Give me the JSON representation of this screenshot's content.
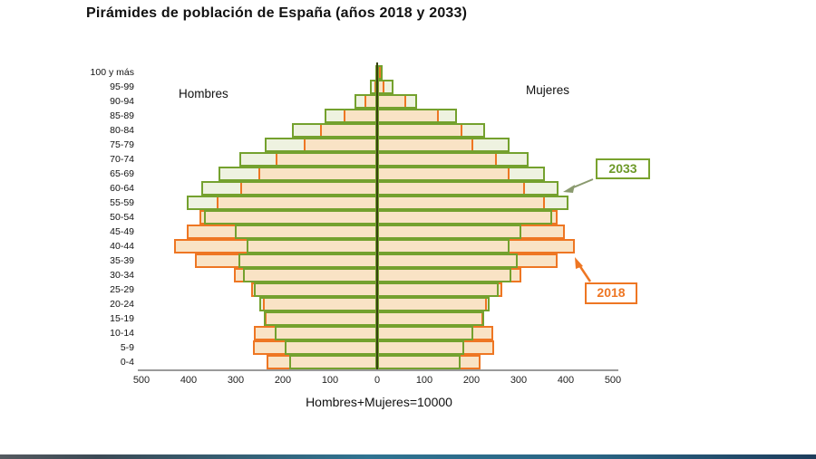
{
  "title": "Pirámides de población de España (años 2018 y 2033)",
  "labels": {
    "left_side": "Hombres",
    "right_side": "Mujeres",
    "footer": "Hombres+Mujeres=10000"
  },
  "legend": {
    "y2033": "2033",
    "y2018": "2018"
  },
  "colors": {
    "green_2033_border": "#74a12e",
    "green_2033_fill": "#eef2e0",
    "orange_2018_border": "#ee7623",
    "orange_2018_fill": "#f9e3c5",
    "center_axis": "#36430f",
    "x_axis": "#9a9a9a"
  },
  "chart_data": {
    "type": "bar",
    "subtype": "population-pyramid",
    "title": "Pirámides de población de España (años 2018 y 2033)",
    "xlabel": "Hombres+Mujeres=10000",
    "x_ticks": [
      "500",
      "400",
      "300",
      "200",
      "100",
      "0",
      "100",
      "200",
      "300",
      "400",
      "500"
    ],
    "x_max_each_side": 500,
    "age_groups": [
      "100 y más",
      "95-99",
      "90-94",
      "85-89",
      "80-84",
      "75-79",
      "70-74",
      "65-69",
      "60-64",
      "55-59",
      "50-54",
      "45-49",
      "40-44",
      "35-39",
      "30-34",
      "25-29",
      "20-24",
      "15-19",
      "10-14",
      "5-9",
      "0-4"
    ],
    "series": [
      {
        "name": "2018",
        "side": "hombres",
        "color": "#ee7623",
        "values": [
          1,
          5,
          26,
          72,
          121,
          156,
          215,
          252,
          290,
          341,
          377,
          404,
          431,
          386,
          304,
          267,
          243,
          239,
          262,
          264,
          234
        ]
      },
      {
        "name": "2018",
        "side": "mujeres",
        "color": "#ee7623",
        "values": [
          3,
          16,
          61,
          130,
          180,
          203,
          253,
          281,
          313,
          355,
          382,
          399,
          420,
          383,
          306,
          266,
          233,
          225,
          247,
          249,
          220
        ]
      },
      {
        "name": "2033",
        "side": "hombres",
        "color": "#74a12e",
        "values": [
          4,
          15,
          48,
          112,
          180,
          239,
          292,
          337,
          373,
          404,
          367,
          301,
          276,
          295,
          284,
          261,
          250,
          241,
          217,
          197,
          187
        ]
      },
      {
        "name": "2033",
        "side": "mujeres",
        "color": "#74a12e",
        "values": [
          12,
          35,
          85,
          169,
          229,
          280,
          322,
          355,
          384,
          406,
          371,
          306,
          281,
          298,
          284,
          257,
          238,
          226,
          204,
          185,
          176
        ]
      }
    ]
  }
}
